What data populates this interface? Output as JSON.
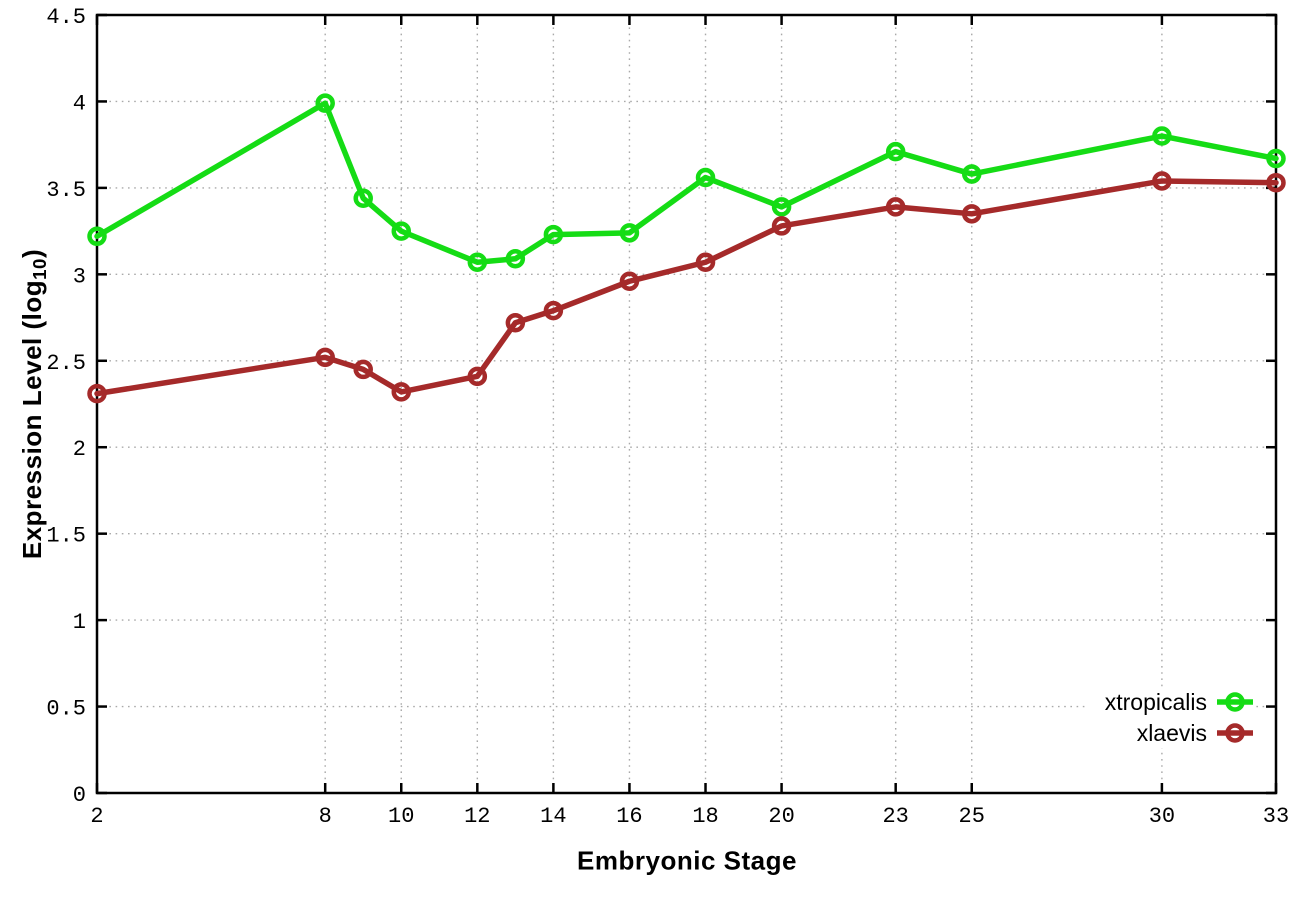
{
  "chart_data": {
    "type": "line",
    "title": "",
    "xlabel": "Embryonic Stage",
    "ylabel": "Expression Level (log10)",
    "ylabel_parts": {
      "pre": "Expression Level (log",
      "sub": "10",
      "post": ")"
    },
    "xlim": [
      2,
      33
    ],
    "ylim": [
      0,
      4.5
    ],
    "x_ticks": [
      2,
      8,
      10,
      12,
      14,
      16,
      18,
      20,
      23,
      25,
      30,
      33
    ],
    "x_tick_labels": [
      "2",
      "8",
      "10",
      "12",
      "14",
      "16",
      "18",
      "20",
      "23",
      "25",
      "30",
      "33"
    ],
    "y_ticks": [
      0,
      0.5,
      1,
      1.5,
      2,
      2.5,
      3,
      3.5,
      4,
      4.5
    ],
    "y_tick_labels": [
      "0",
      "0.5",
      "1",
      "1.5",
      "2",
      "2.5",
      "3",
      "3.5",
      "4",
      "4.5"
    ],
    "grid": true,
    "grid_style": "dotted",
    "grid_color": "#a9a9a9",
    "axis_color": "#000000",
    "background": "#ffffff",
    "legend_position": "inside-bottom-right",
    "marker": "open-circle",
    "x": [
      2,
      8,
      9,
      10,
      12,
      13,
      14,
      16,
      18,
      20,
      23,
      25,
      30,
      33
    ],
    "series": [
      {
        "name": "xtropicalis",
        "color": "#15dc15",
        "values": [
          3.22,
          3.99,
          3.44,
          3.25,
          3.07,
          3.09,
          3.23,
          3.24,
          3.56,
          3.39,
          3.71,
          3.58,
          3.8,
          3.67
        ]
      },
      {
        "name": "xlaevis",
        "color": "#a52a2a",
        "values": [
          2.31,
          2.52,
          2.45,
          2.32,
          2.41,
          2.72,
          2.79,
          2.96,
          3.07,
          3.28,
          3.39,
          3.35,
          3.54,
          3.53
        ]
      }
    ]
  }
}
